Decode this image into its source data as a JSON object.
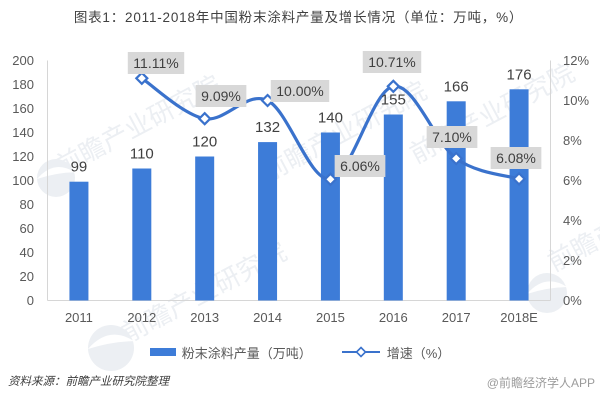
{
  "title": "图表1：2011-2018年中国粉末涂料产量及增长情况（单位：万吨，%）",
  "colors": {
    "bar": "#3D7CD8",
    "line": "#3A72CC",
    "marker_fill": "#FFFFFF",
    "label_box_bg": "#D8D8D8",
    "label_text": "#3F3F3F",
    "bar_label_text": "#404040",
    "axis_line": "#D6D6D6",
    "tick_text": "#595959",
    "watermark": "#ECEFF3"
  },
  "chart_data": {
    "type": "bar",
    "title": "图表1：2011-2018年中国粉末涂料产量及增长情况（单位：万吨，%）",
    "categories": [
      "2011",
      "2012",
      "2013",
      "2014",
      "2015",
      "2016",
      "2017",
      "2018E"
    ],
    "series": [
      {
        "name": "粉末涂料产量（万吨）",
        "type": "bar",
        "yaxis": "left",
        "values": [
          99,
          110,
          120,
          132,
          140,
          155,
          166,
          176
        ],
        "labels": [
          "99",
          "110",
          "120",
          "132",
          "140",
          "155",
          "166",
          "176"
        ]
      },
      {
        "name": "增速（%）",
        "type": "line",
        "yaxis": "right",
        "values": [
          null,
          11.11,
          9.09,
          10.0,
          6.06,
          10.71,
          7.1,
          6.08
        ],
        "labels": [
          "",
          "11.11%",
          "9.09%",
          "10.00%",
          "6.06%",
          "10.71%",
          "7.10%",
          "6.08%"
        ]
      }
    ],
    "left_axis": {
      "min": 0,
      "max": 200,
      "step": 20,
      "tick_labels": [
        "0",
        "20",
        "40",
        "60",
        "80",
        "100",
        "120",
        "140",
        "160",
        "180",
        "200"
      ]
    },
    "right_axis": {
      "min": 0,
      "max": 12,
      "step": 2,
      "tick_labels": [
        "0%",
        "2%",
        "4%",
        "6%",
        "8%",
        "10%",
        "12%"
      ]
    },
    "grid": false,
    "legend_position": "bottom",
    "xlabel": "",
    "ylabel": ""
  },
  "legend": {
    "bar_label": "粉末涂料产量（万吨）",
    "line_label": "增速（%）"
  },
  "footer": {
    "source": "资料来源：前瞻产业研究院整理",
    "credit": "@前瞻经济学人APP"
  },
  "watermark": {
    "text": "前瞻产业研究院",
    "brand": "前瞻"
  }
}
